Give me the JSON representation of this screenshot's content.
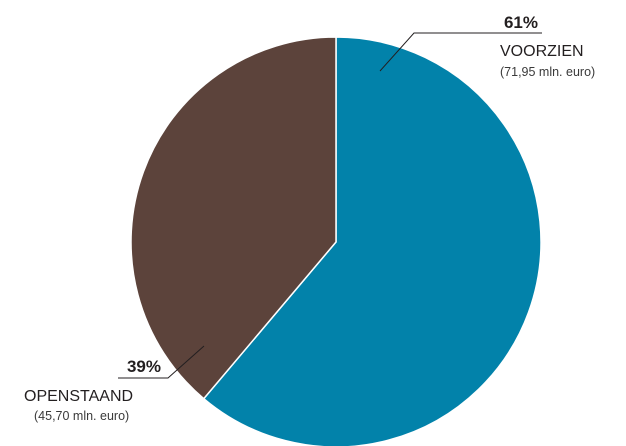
{
  "chart_data": {
    "type": "pie",
    "slices": [
      {
        "label": "VOORZIEN",
        "percent_label": "61%",
        "amount": "(71,95 mln. euro)",
        "value": 71.95,
        "color": "#0282aa"
      },
      {
        "label": "OPENSTAAND",
        "percent_label": "39%",
        "amount": "(45,70 mln. euro)",
        "value": 45.7,
        "color": "#5c433b"
      }
    ],
    "start": "12 o'clock",
    "direction": "clockwise",
    "slice_border_color": "#ffffff",
    "leader_color": "#231f20"
  }
}
